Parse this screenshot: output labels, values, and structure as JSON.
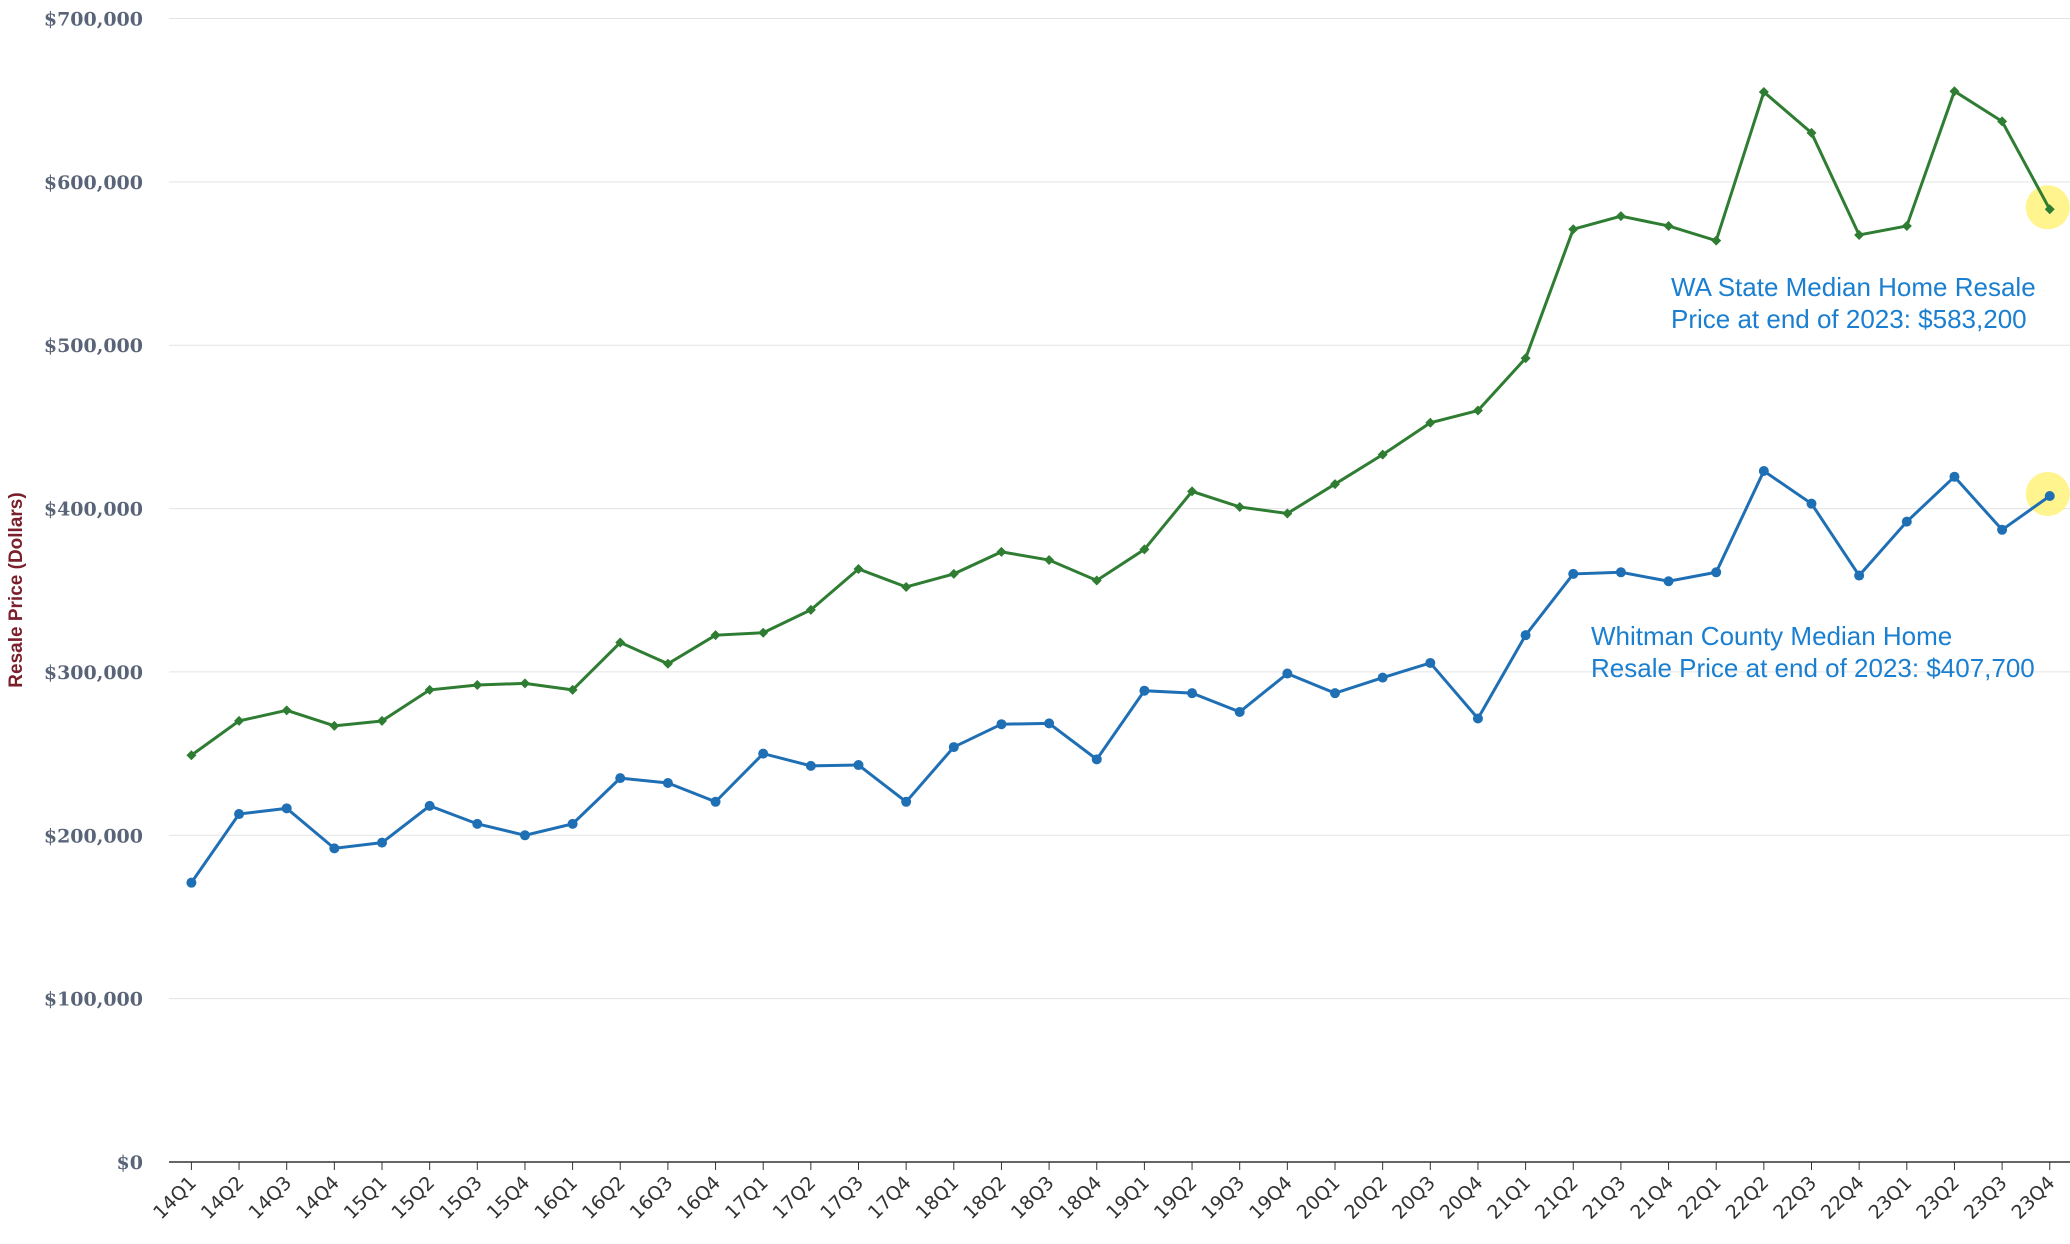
{
  "chart_data": {
    "type": "line",
    "y_label": "Resale Price (Dollars)",
    "categories": [
      "14Q1",
      "14Q2",
      "14Q3",
      "14Q4",
      "15Q1",
      "15Q2",
      "15Q3",
      "15Q4",
      "16Q1",
      "16Q2",
      "16Q3",
      "16Q4",
      "17Q1",
      "17Q2",
      "17Q3",
      "17Q4",
      "18Q1",
      "18Q2",
      "18Q3",
      "18Q4",
      "19Q1",
      "19Q2",
      "19Q3",
      "19Q4",
      "20Q1",
      "20Q2",
      "20Q3",
      "20Q4",
      "21Q1",
      "21Q2",
      "21Q3",
      "21Q4",
      "22Q1",
      "22Q2",
      "22Q3",
      "22Q4",
      "23Q1",
      "23Q2",
      "23Q3",
      "23Q4"
    ],
    "series": [
      {
        "color": "#2e7d32",
        "marker": "diamond",
        "values": [
          249000,
          270000,
          276500,
          267000,
          270000,
          289000,
          292000,
          293000,
          289000,
          318000,
          305000,
          322500,
          324000,
          338000,
          363000,
          352000,
          360000,
          373500,
          368500,
          356000,
          375000,
          410500,
          401000,
          397000,
          415000,
          433000,
          452500,
          460000,
          492000,
          571000,
          579000,
          573000,
          564000,
          655000,
          630000,
          567500,
          573000,
          655500,
          637000,
          583200
        ]
      },
      {
        "color": "#1f6fb5",
        "marker": "circle",
        "values": [
          171000,
          213000,
          216500,
          192000,
          195500,
          218000,
          207000,
          200000,
          207000,
          235000,
          232000,
          220500,
          250000,
          242500,
          243000,
          220500,
          254000,
          268000,
          268500,
          246500,
          288500,
          287000,
          275500,
          299000,
          287000,
          296500,
          305500,
          271500,
          322500,
          360000,
          361000,
          355500,
          361000,
          423000,
          403000,
          359000,
          392000,
          419500,
          387000,
          407700
        ]
      }
    ],
    "annotations": [
      {
        "lines": [
          "WA State Median Home Resale",
          "Price at end of 2023: $583,200"
        ]
      },
      {
        "lines": [
          "Whitman County Median Home",
          "Resale Price at end of 2023: $407,700"
        ]
      }
    ],
    "ylim": [
      0,
      700000
    ],
    "yticks": [
      {
        "value": 0,
        "label": "$0"
      },
      {
        "value": 100000,
        "label": "$100,000"
      },
      {
        "value": 200000,
        "label": "$200,000"
      },
      {
        "value": 300000,
        "label": "$300,000"
      },
      {
        "value": 400000,
        "label": "$400,000"
      },
      {
        "value": 500000,
        "label": "$500,000"
      },
      {
        "value": 600000,
        "label": "$600,000"
      },
      {
        "value": 700000,
        "label": "$700,000"
      }
    ],
    "grid": true
  }
}
